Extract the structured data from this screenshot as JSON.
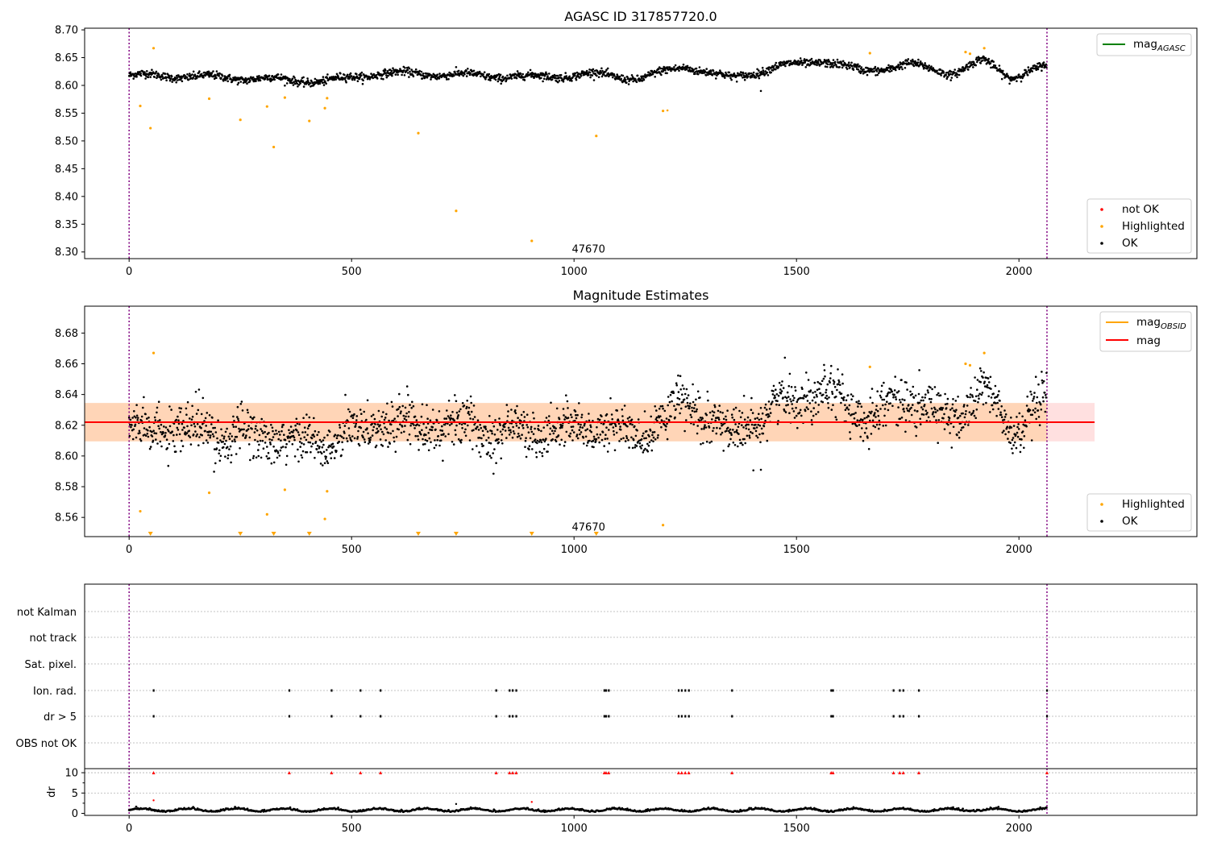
{
  "figure": {
    "vline_x": [
      0,
      2063
    ],
    "colors": {
      "ok": "#000000",
      "highlighted": "#ffa500",
      "not_ok": "#ff0000",
      "vline": "#800080",
      "band_red": "#ff0000",
      "band_orange": "#ffa500",
      "mag_agasc": "#008000",
      "mag_obsid": "#ffa500",
      "mag": "#ff0000"
    }
  },
  "chart_data": [
    {
      "type": "scatter",
      "title": "AGASC ID 317857720.0",
      "xlim": [
        -100,
        2400
      ],
      "ylim": [
        8.288,
        8.703
      ],
      "xticks": [
        0,
        500,
        1000,
        1500,
        2000
      ],
      "yticks": [
        8.3,
        8.35,
        8.4,
        8.45,
        8.5,
        8.55,
        8.6,
        8.65,
        8.7
      ],
      "annotation": {
        "text": "47670",
        "x": 1000,
        "y": 8.3
      },
      "legend_lines": [
        {
          "label": "mag",
          "sub": "AGASC",
          "color": "#008000"
        }
      ],
      "legend_points": [
        {
          "label": "not OK",
          "color": "#ff0000"
        },
        {
          "label": "Highlighted",
          "color": "#ffa500"
        },
        {
          "label": "OK",
          "color": "#000000"
        }
      ],
      "ok_series": {
        "n": 2063,
        "segments": [
          [
            0,
            8.618
          ],
          [
            100,
            8.617
          ],
          [
            300,
            8.612
          ],
          [
            440,
            8.607
          ],
          [
            560,
            8.622
          ],
          [
            700,
            8.62
          ],
          [
            900,
            8.615
          ],
          [
            1050,
            8.62
          ],
          [
            1150,
            8.612
          ],
          [
            1250,
            8.635
          ],
          [
            1350,
            8.613
          ],
          [
            1450,
            8.632
          ],
          [
            1560,
            8.645
          ],
          [
            1650,
            8.625
          ],
          [
            1750,
            8.638
          ],
          [
            1850,
            8.622
          ],
          [
            1920,
            8.645
          ],
          [
            1980,
            8.615
          ],
          [
            2063,
            8.635
          ]
        ],
        "noise": 0.0065,
        "extra": [
          [
            1420,
            8.59
          ],
          [
            1210,
            8.555
          ]
        ]
      },
      "highlighted": [
        [
          25,
          8.563
        ],
        [
          48,
          8.523
        ],
        [
          55,
          8.667
        ],
        [
          180,
          8.576
        ],
        [
          250,
          8.538
        ],
        [
          310,
          8.562
        ],
        [
          325,
          8.489
        ],
        [
          350,
          8.578
        ],
        [
          405,
          8.536
        ],
        [
          440,
          8.559
        ],
        [
          445,
          8.577
        ],
        [
          650,
          8.514
        ],
        [
          735,
          8.374
        ],
        [
          905,
          8.32
        ],
        [
          1050,
          8.509
        ],
        [
          1200,
          8.554
        ],
        [
          1665,
          8.658
        ],
        [
          1880,
          8.66
        ],
        [
          1890,
          8.657
        ],
        [
          1922,
          8.667
        ]
      ]
    },
    {
      "type": "scatter",
      "title": "Magnitude Estimates",
      "xlim": [
        -100,
        2400
      ],
      "ylim": [
        8.5475,
        8.6975
      ],
      "xticks": [
        0,
        500,
        1000,
        1500,
        2000
      ],
      "yticks": [
        8.56,
        8.58,
        8.6,
        8.62,
        8.64,
        8.66,
        8.68
      ],
      "mag": 8.622,
      "band_outer": [
        8.6095,
        8.6345
      ],
      "band_inner": [
        8.6095,
        8.6345
      ],
      "band_x": [
        -100,
        2170
      ],
      "band_inner_x": [
        -100,
        2063
      ],
      "annotation": {
        "text": "47670",
        "x": 1000,
        "y": 8.554
      },
      "legend_lines": [
        {
          "label": "mag",
          "sub": "OBSID",
          "color": "#ffa500"
        },
        {
          "label": "mag",
          "sub": "",
          "color": "#ff0000"
        }
      ],
      "legend_points": [
        {
          "label": "Highlighted",
          "color": "#ffa500"
        },
        {
          "label": "OK",
          "color": "#000000"
        }
      ],
      "highlighted": [
        [
          25,
          8.564
        ],
        [
          55,
          8.667
        ],
        [
          180,
          8.576
        ],
        [
          310,
          8.562
        ],
        [
          350,
          8.578
        ],
        [
          440,
          8.559
        ],
        [
          445,
          8.577
        ],
        [
          1200,
          8.555
        ],
        [
          1665,
          8.658
        ],
        [
          1880,
          8.66
        ],
        [
          1890,
          8.659
        ],
        [
          1922,
          8.667
        ]
      ],
      "below_range_x": [
        48,
        250,
        325,
        405,
        650,
        735,
        905,
        1050
      ]
    },
    {
      "type": "scatter",
      "categories": [
        "not Kalman",
        "not track",
        "Sat. pixel.",
        "Ion. rad.",
        "dr > 5",
        "OBS not OK"
      ],
      "xlim": [
        -100,
        2400
      ],
      "xticks": [
        0,
        500,
        1000,
        1500,
        2000
      ],
      "flag_x": [
        55,
        360,
        455,
        520,
        565,
        825,
        855,
        862,
        870,
        1068,
        1072,
        1078,
        1235,
        1242,
        1250,
        1258,
        1355,
        1578,
        1582,
        1718,
        1732,
        1740,
        1775,
        2063
      ],
      "ylabel": "dr",
      "dr_ylim": [
        -0.5,
        11
      ],
      "dr_yticks": [
        0,
        5,
        10
      ],
      "dr_outliers": [
        [
          55,
          3.2
        ],
        [
          735,
          2.3
        ],
        [
          905,
          2.8
        ]
      ]
    }
  ]
}
